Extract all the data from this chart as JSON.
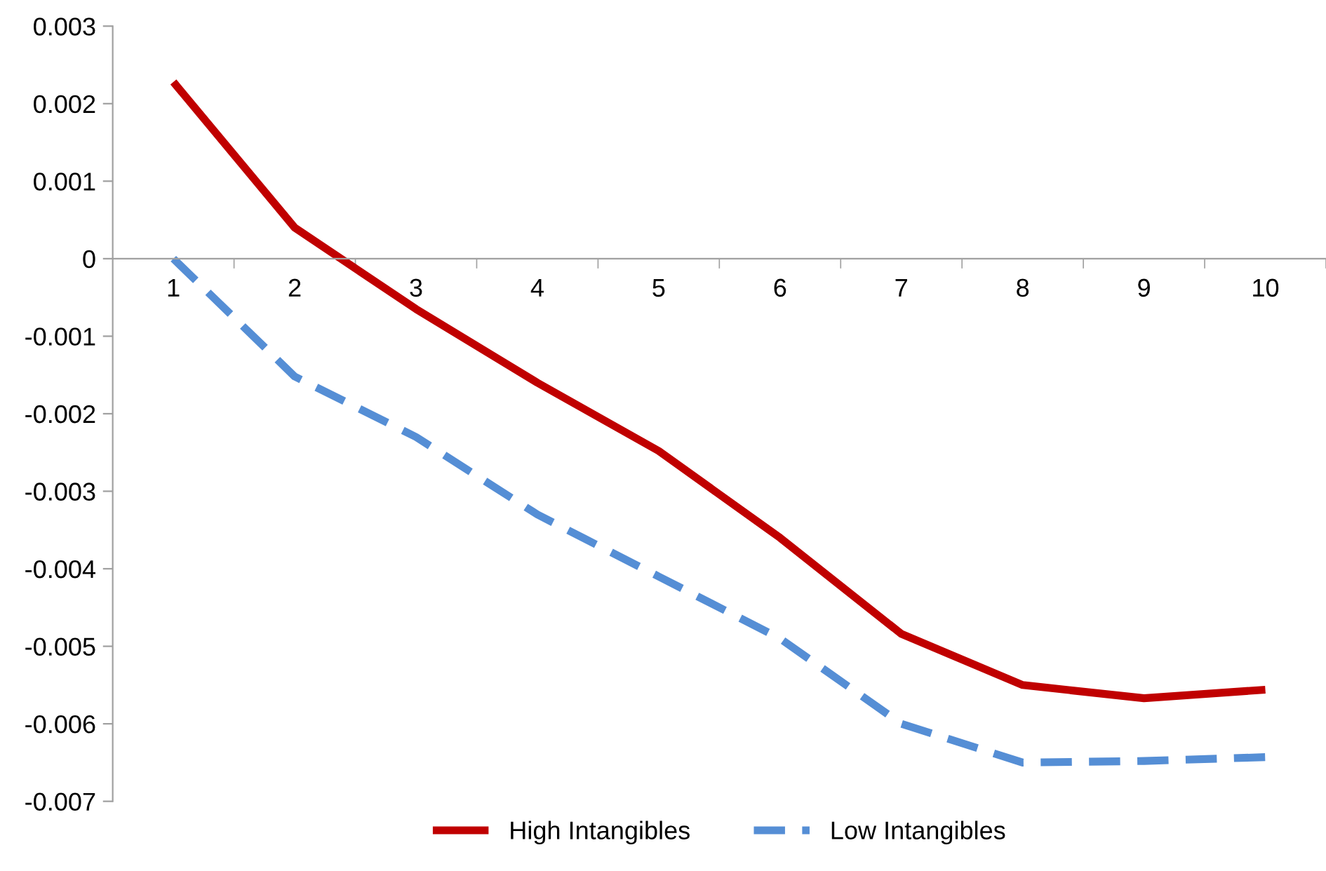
{
  "chart_data": {
    "type": "line",
    "categories": [
      "1",
      "2",
      "3",
      "4",
      "5",
      "6",
      "7",
      "8",
      "9",
      "10"
    ],
    "series": [
      {
        "name": "High Intangibles",
        "color": "#c00000",
        "line_style": "solid",
        "values": [
          0.00228,
          0.0004,
          -0.00065,
          -0.0016,
          -0.00248,
          -0.0036,
          -0.00484,
          -0.0055,
          -0.00567,
          -0.00556
        ]
      },
      {
        "name": "Low Intangibles",
        "color": "#558ed5",
        "line_style": "dashed",
        "values": [
          0.0,
          -0.00152,
          -0.0023,
          -0.0033,
          -0.0041,
          -0.0049,
          -0.006,
          -0.0065,
          -0.00648,
          -0.00643
        ]
      }
    ],
    "ylim": [
      -0.007,
      0.003
    ],
    "yticks": [
      -0.007,
      -0.006,
      -0.005,
      -0.004,
      -0.003,
      -0.002,
      -0.001,
      0,
      0.001,
      0.002,
      0.003
    ],
    "grid": false,
    "legend": "bottom",
    "marker": "none"
  }
}
